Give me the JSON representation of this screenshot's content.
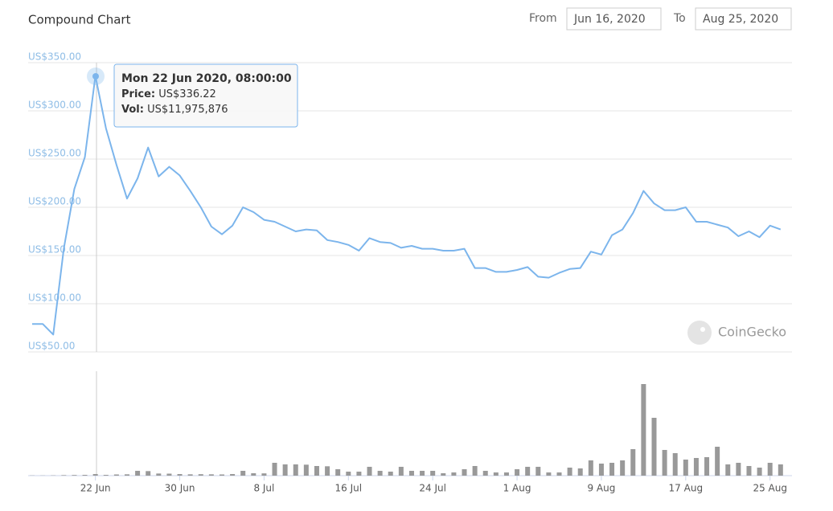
{
  "header": {
    "from_label": "From",
    "from": "Jun 16, 2020",
    "to_label": "To",
    "to": "Aug 25, 2020"
  },
  "tooltip": {
    "date": "Mon 22 Jun 2020, 08:00:00",
    "price_label": "Price:",
    "price": "US$336.22",
    "vol_label": "Vol:",
    "vol": "US$11,975,876"
  },
  "chart_data": {
    "type": "line",
    "title": "Compound Chart",
    "credit": "CoinGecko",
    "x": [
      "2020-06-16",
      "2020-06-17",
      "2020-06-18",
      "2020-06-19",
      "2020-06-20",
      "2020-06-21",
      "2020-06-22",
      "2020-06-23",
      "2020-06-24",
      "2020-06-25",
      "2020-06-26",
      "2020-06-27",
      "2020-06-28",
      "2020-06-29",
      "2020-06-30",
      "2020-07-01",
      "2020-07-02",
      "2020-07-03",
      "2020-07-04",
      "2020-07-05",
      "2020-07-06",
      "2020-07-07",
      "2020-07-08",
      "2020-07-09",
      "2020-07-10",
      "2020-07-11",
      "2020-07-12",
      "2020-07-13",
      "2020-07-14",
      "2020-07-15",
      "2020-07-16",
      "2020-07-17",
      "2020-07-18",
      "2020-07-19",
      "2020-07-20",
      "2020-07-21",
      "2020-07-22",
      "2020-07-23",
      "2020-07-24",
      "2020-07-25",
      "2020-07-26",
      "2020-07-27",
      "2020-07-28",
      "2020-07-29",
      "2020-07-30",
      "2020-07-31",
      "2020-08-01",
      "2020-08-02",
      "2020-08-03",
      "2020-08-04",
      "2020-08-05",
      "2020-08-06",
      "2020-08-07",
      "2020-08-08",
      "2020-08-09",
      "2020-08-10",
      "2020-08-11",
      "2020-08-12",
      "2020-08-13",
      "2020-08-14",
      "2020-08-15",
      "2020-08-16",
      "2020-08-17",
      "2020-08-18",
      "2020-08-19",
      "2020-08-20",
      "2020-08-21",
      "2020-08-22",
      "2020-08-23",
      "2020-08-24",
      "2020-08-25",
      "2020-08-26"
    ],
    "series": [
      {
        "type": "line",
        "color": "#7cb5ec",
        "values": [
          79,
          79,
          68,
          157,
          219,
          252,
          336.22,
          282,
          244,
          209,
          230,
          262,
          232,
          242,
          233,
          217,
          200,
          180,
          172,
          181,
          200,
          195,
          187,
          185,
          180,
          175,
          177,
          176,
          166,
          164,
          161,
          155,
          168,
          164,
          163,
          158,
          160,
          157,
          157,
          155,
          155,
          157,
          137,
          137,
          133,
          133,
          135,
          138,
          128,
          127,
          132,
          136,
          137,
          154,
          151,
          171,
          177,
          194,
          217,
          204,
          197,
          197,
          200,
          185,
          185,
          182,
          179,
          170,
          175,
          169,
          181,
          177
        ]
      },
      {
        "type": "bar",
        "axis": "y2",
        "color": "#999999",
        "values": [
          1500000,
          1200000,
          2000000,
          4000000,
          5000000,
          6000000,
          11975876,
          6000000,
          9000000,
          10000000,
          36000000,
          34000000,
          16000000,
          15000000,
          12000000,
          10000000,
          11000000,
          10000000,
          9000000,
          12000000,
          36000000,
          18000000,
          17000000,
          96000000,
          84000000,
          84000000,
          82000000,
          72000000,
          70000000,
          48000000,
          30000000,
          30000000,
          66000000,
          36000000,
          30000000,
          66000000,
          36000000,
          36000000,
          36000000,
          18000000,
          24000000,
          48000000,
          72000000,
          36000000,
          24000000,
          24000000,
          48000000,
          66000000,
          66000000,
          24000000,
          24000000,
          60000000,
          54000000,
          114000000,
          90000000,
          96000000,
          114000000,
          198000000,
          684000000,
          432000000,
          192000000,
          168000000,
          120000000,
          132000000,
          138000000,
          216000000,
          84000000,
          96000000,
          72000000,
          60000000,
          96000000,
          84000000
        ]
      }
    ],
    "ylim": [
      50,
      350
    ],
    "yticks": [
      {
        "value": 50,
        "label": "US$50.00"
      },
      {
        "value": 100,
        "label": "US$100.00"
      },
      {
        "value": 150,
        "label": "US$150.00"
      },
      {
        "value": 200,
        "label": "US$200.00"
      },
      {
        "value": 250,
        "label": "US$250.00"
      },
      {
        "value": 300,
        "label": "US$300.00"
      },
      {
        "value": 350,
        "label": "US$350.00"
      }
    ],
    "y2lim": [
      0,
      780000000
    ],
    "xticks": [
      {
        "value": "2020-06-22",
        "label": "22 Jun"
      },
      {
        "value": "2020-06-30",
        "label": "30 Jun"
      },
      {
        "value": "2020-07-08",
        "label": "8 Jul"
      },
      {
        "value": "2020-07-16",
        "label": "16 Jul"
      },
      {
        "value": "2020-07-24",
        "label": "24 Jul"
      },
      {
        "value": "2020-08-01",
        "label": "1 Aug"
      },
      {
        "value": "2020-08-09",
        "label": "9 Aug"
      },
      {
        "value": "2020-08-17",
        "label": "17 Aug"
      },
      {
        "value": "2020-08-25",
        "label": "25 Aug"
      }
    ],
    "grid": true
  }
}
